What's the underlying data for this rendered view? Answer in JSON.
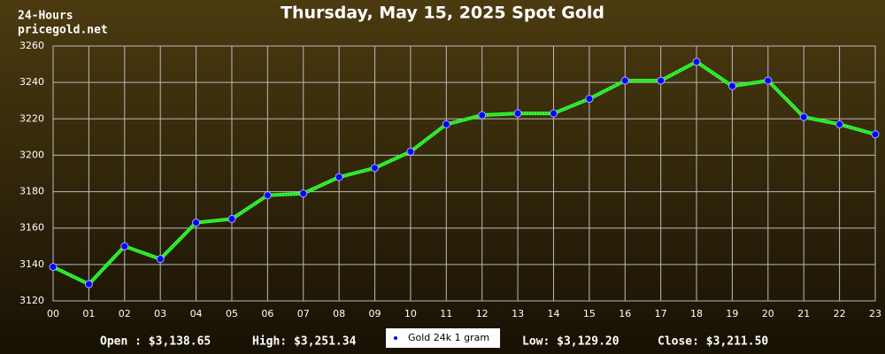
{
  "chart_data": {
    "type": "line",
    "title": "Thursday, May 15, 2025 Spot Gold",
    "subtitle": [
      "24-Hours",
      "pricegold.net"
    ],
    "categories": [
      "00",
      "01",
      "02",
      "03",
      "04",
      "05",
      "06",
      "07",
      "08",
      "09",
      "10",
      "11",
      "12",
      "13",
      "14",
      "15",
      "16",
      "17",
      "18",
      "19",
      "20",
      "21",
      "22",
      "23"
    ],
    "series": [
      {
        "name": "Gold 24k 1 gram",
        "color": "#33ff33",
        "marker_color": "#0000ff",
        "values": [
          3138.65,
          3129.2,
          3150,
          3143,
          3163,
          3165,
          3178,
          3179,
          3188,
          3193,
          3202,
          3217,
          3222,
          3223,
          3223,
          3231,
          3241,
          3241,
          3251.34,
          3238,
          3241,
          3221,
          3217,
          3211.5
        ]
      }
    ],
    "ylim": [
      3120,
      3260
    ],
    "yticks": [
      3120,
      3140,
      3160,
      3180,
      3200,
      3220,
      3240,
      3260
    ],
    "grid": true,
    "stats": [
      "Open : $3,138.65",
      "High: $3,251.34",
      "Low: $3,129.20",
      "Close: $3,211.50"
    ]
  }
}
